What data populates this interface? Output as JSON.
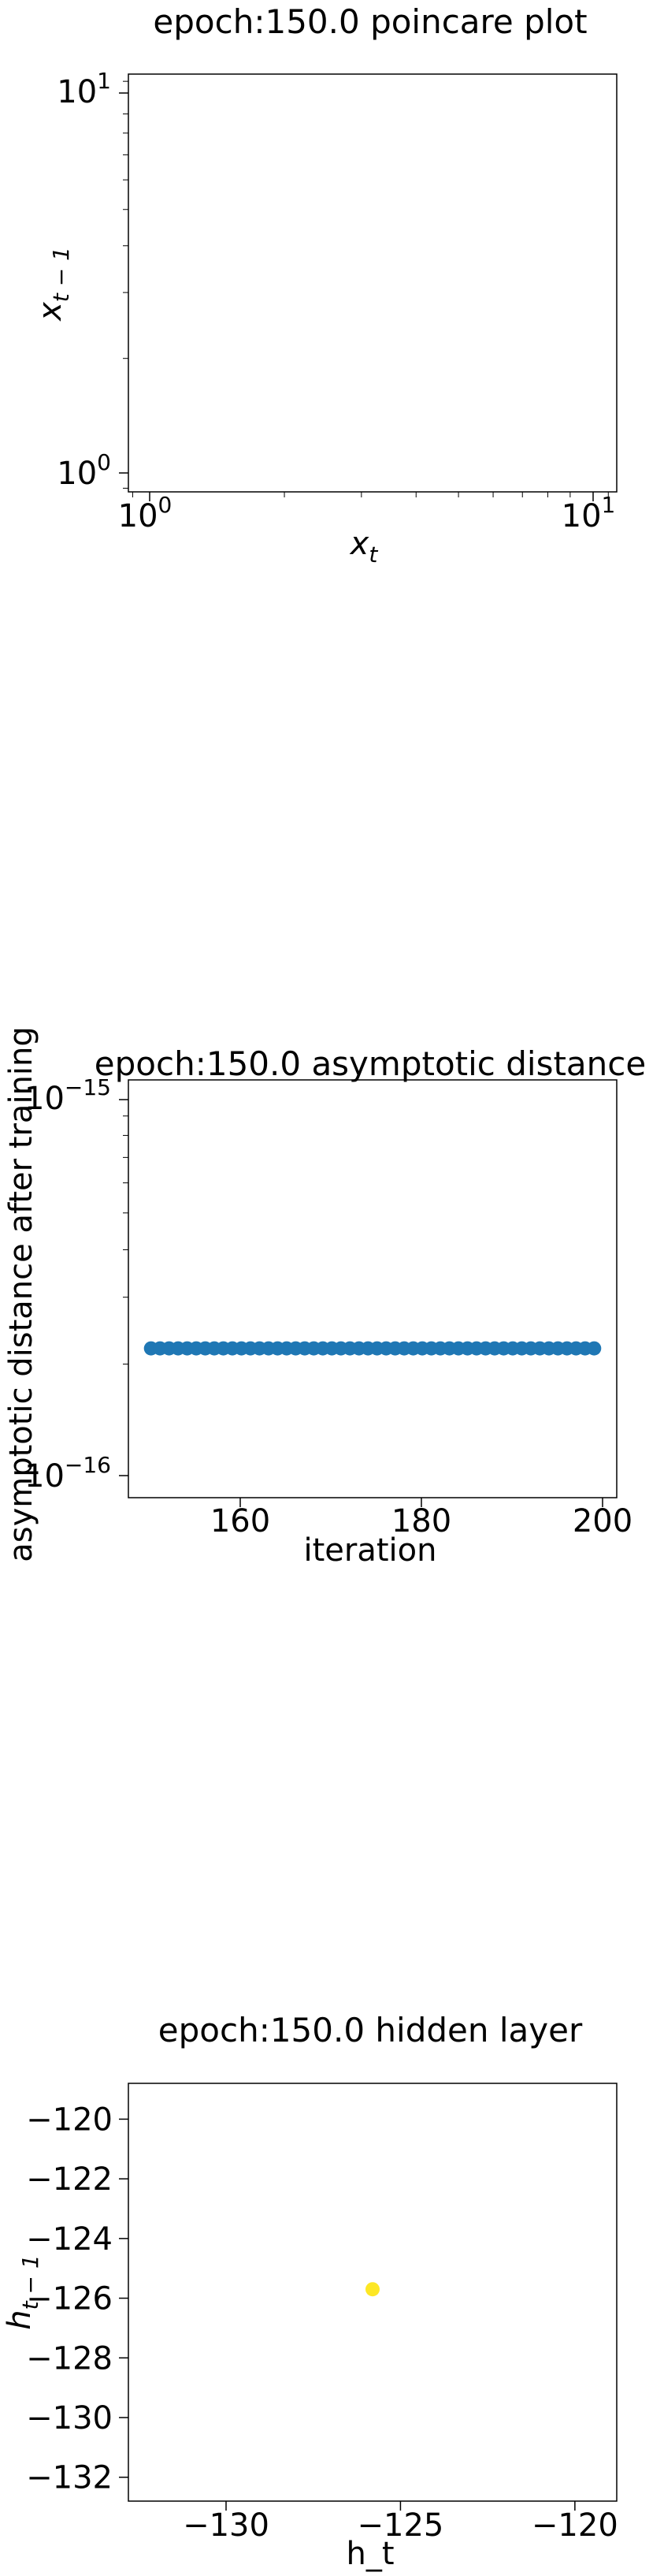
{
  "chart_data": [
    {
      "type": "scatter",
      "title": "epoch:150.0 poincare plot",
      "xlabel": "x",
      "xlabel_sub": "t",
      "ylabel": "x",
      "ylabel_sub": "t − 1",
      "xscale": "log",
      "yscale": "log",
      "xlim": [
        0.88,
        11.5
      ],
      "ylim": [
        0.88,
        11.5
      ],
      "x_ticks": [
        {
          "base": "10",
          "exp": "0",
          "value": 1
        },
        {
          "base": "10",
          "exp": "1",
          "value": 10
        }
      ],
      "y_ticks": [
        {
          "base": "10",
          "exp": "0",
          "value": 1
        },
        {
          "base": "10",
          "exp": "1",
          "value": 10
        }
      ],
      "points": []
    },
    {
      "type": "scatter",
      "title": "epoch:150.0 asymptotic distance",
      "xlabel": "iteration",
      "ylabel": "asymptotic distance after training",
      "xscale": "linear",
      "yscale": "log",
      "xlim": [
        147.5,
        201.5
      ],
      "ylim": [
        8.9e-17,
        1.12e-15
      ],
      "x_ticks": [
        {
          "label": "160",
          "value": 160
        },
        {
          "label": "180",
          "value": 180
        },
        {
          "label": "200",
          "value": 200
        }
      ],
      "y_ticks": [
        {
          "base": "10",
          "exp": "−15",
          "value": 1e-15
        },
        {
          "base": "10",
          "exp": "−16",
          "value": 1e-16
        }
      ],
      "marker_color": "#1f77b4",
      "x": [
        150,
        151,
        152,
        153,
        154,
        155,
        156,
        157,
        158,
        159,
        160,
        161,
        162,
        163,
        164,
        165,
        166,
        167,
        168,
        169,
        170,
        171,
        172,
        173,
        174,
        175,
        176,
        177,
        178,
        179,
        180,
        181,
        182,
        183,
        184,
        185,
        186,
        187,
        188,
        189,
        190,
        191,
        192,
        193,
        194,
        195,
        196,
        197,
        198,
        199
      ],
      "y_value": 2.2e-16
    },
    {
      "type": "scatter",
      "title": "epoch:150.0 hidden layer",
      "xlabel": "h_t",
      "ylabel": "h",
      "ylabel_sub": "t − 1",
      "xscale": "linear",
      "yscale": "linear",
      "xlim": [
        -132.8,
        -118.8
      ],
      "ylim": [
        -132.8,
        -118.8
      ],
      "x_ticks": [
        {
          "label": "−130",
          "value": -130
        },
        {
          "label": "−125",
          "value": -125
        },
        {
          "label": "−120",
          "value": -120
        }
      ],
      "y_ticks": [
        {
          "label": "−120",
          "value": -120
        },
        {
          "label": "−122",
          "value": -122
        },
        {
          "label": "−124",
          "value": -124
        },
        {
          "label": "−126",
          "value": -126
        },
        {
          "label": "−128",
          "value": -128
        },
        {
          "label": "−130",
          "value": -130
        },
        {
          "label": "−132",
          "value": -132
        }
      ],
      "marker_color": "#fde725",
      "points": [
        {
          "x": -125.8,
          "y": -125.7
        }
      ]
    }
  ]
}
